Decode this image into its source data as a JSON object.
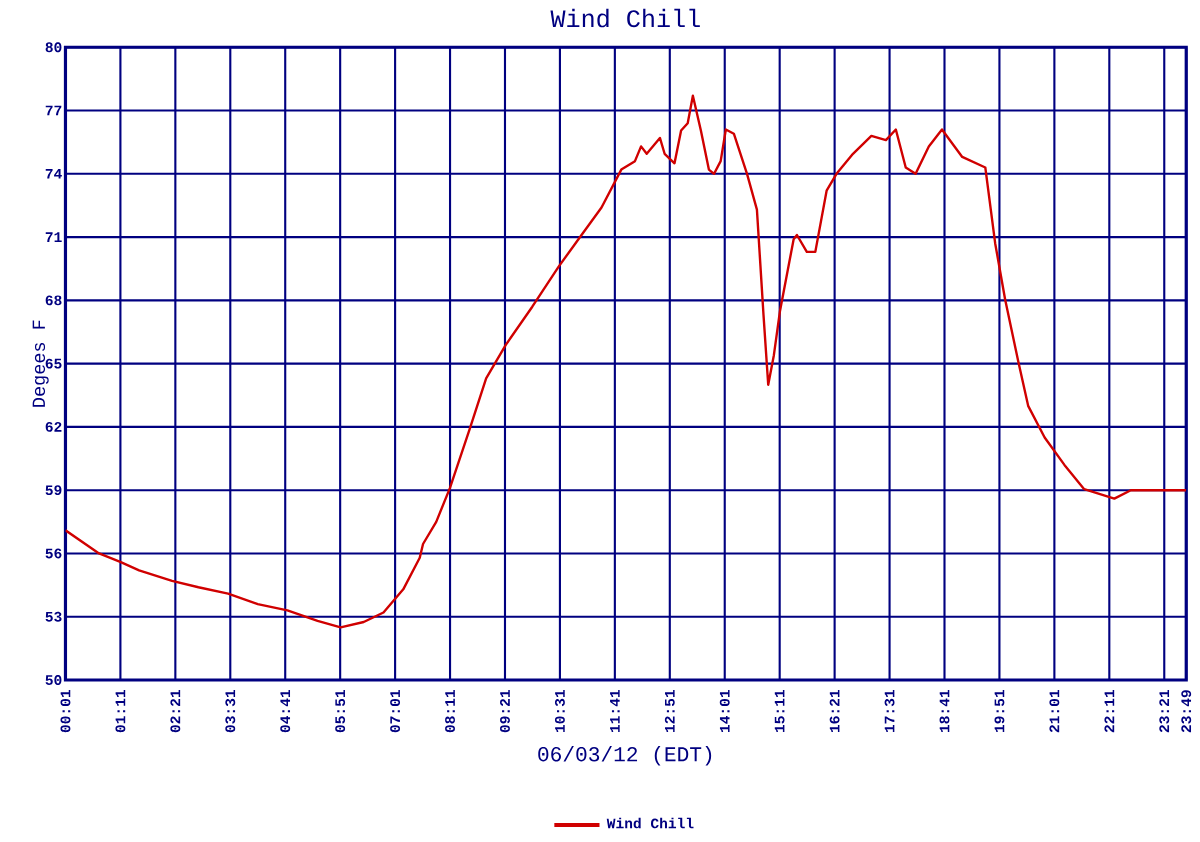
{
  "chart_data": {
    "type": "line",
    "title": "Wind Chill",
    "xlabel": "06/03/12 (EDT)",
    "ylabel": "Degees F",
    "x": [
      0.0167,
      0.73,
      1.18,
      1.58,
      2.28,
      2.84,
      3.47,
      4.1,
      4.73,
      5.37,
      5.86,
      6.35,
      6.77,
      7.19,
      7.54,
      7.61,
      7.89,
      8.18,
      8.6,
      8.95,
      9.37,
      9.93,
      10.49,
      10.91,
      11.4,
      11.82,
      12.11,
      12.24,
      12.36,
      12.64,
      12.74,
      12.95,
      13.09,
      13.23,
      13.34,
      13.51,
      13.68,
      13.79,
      13.93,
      14.04,
      14.21,
      14.49,
      14.7,
      14.84,
      14.94,
      15.06,
      15.19,
      15.48,
      15.55,
      15.76,
      15.94,
      16.18,
      16.39,
      16.74,
      17.13,
      17.44,
      17.65,
      17.86,
      18.07,
      18.35,
      18.63,
      19.06,
      19.55,
      19.76,
      19.97,
      20.25,
      20.46,
      20.81,
      21.23,
      21.65,
      22.29,
      22.64,
      23.8167
    ],
    "series": [
      {
        "name": "Wind Chill",
        "color": "#d00000",
        "values": [
          57.1,
          56.0,
          55.6,
          55.2,
          54.7,
          54.4,
          54.1,
          53.6,
          53.3,
          52.8,
          52.5,
          52.75,
          53.2,
          54.3,
          55.8,
          56.45,
          57.5,
          59.1,
          61.9,
          64.3,
          65.9,
          67.7,
          69.6,
          70.9,
          72.4,
          74.2,
          74.6,
          75.3,
          74.95,
          75.7,
          74.95,
          74.5,
          76.05,
          76.4,
          77.7,
          76.05,
          74.2,
          74.0,
          74.6,
          76.1,
          75.9,
          74.0,
          72.3,
          67.3,
          64.0,
          65.4,
          67.5,
          70.9,
          71.1,
          70.3,
          70.3,
          73.2,
          74.0,
          74.95,
          75.8,
          75.6,
          76.1,
          74.3,
          74.0,
          75.3,
          76.1,
          74.8,
          74.3,
          70.7,
          68.05,
          65.1,
          63.0,
          61.5,
          60.2,
          59.05,
          58.6,
          59.0,
          59.0
        ]
      }
    ],
    "xlim": [
      0.0167,
      23.8167
    ],
    "ylim": [
      50,
      80
    ],
    "yticks": [
      50,
      53,
      56,
      59,
      62,
      65,
      68,
      71,
      74,
      77,
      80
    ],
    "xticks": [
      {
        "value": 0.0167,
        "label": "00:01"
      },
      {
        "value": 1.1833,
        "label": "01:11"
      },
      {
        "value": 2.35,
        "label": "02:21"
      },
      {
        "value": 3.5167,
        "label": "03:31"
      },
      {
        "value": 4.6833,
        "label": "04:41"
      },
      {
        "value": 5.85,
        "label": "05:51"
      },
      {
        "value": 7.0167,
        "label": "07:01"
      },
      {
        "value": 8.1833,
        "label": "08:11"
      },
      {
        "value": 9.35,
        "label": "09:21"
      },
      {
        "value": 10.5167,
        "label": "10:31"
      },
      {
        "value": 11.6833,
        "label": "11:41"
      },
      {
        "value": 12.85,
        "label": "12:51"
      },
      {
        "value": 14.0167,
        "label": "14:01"
      },
      {
        "value": 15.1833,
        "label": "15:11"
      },
      {
        "value": 16.35,
        "label": "16:21"
      },
      {
        "value": 17.5167,
        "label": "17:31"
      },
      {
        "value": 18.6833,
        "label": "18:41"
      },
      {
        "value": 19.85,
        "label": "19:51"
      },
      {
        "value": 21.0167,
        "label": "21:01"
      },
      {
        "value": 22.1833,
        "label": "22:11"
      },
      {
        "value": 23.35,
        "label": "23:21"
      },
      {
        "value": 23.8167,
        "label": "23:49"
      }
    ],
    "grid": true,
    "legend": "bottom"
  }
}
